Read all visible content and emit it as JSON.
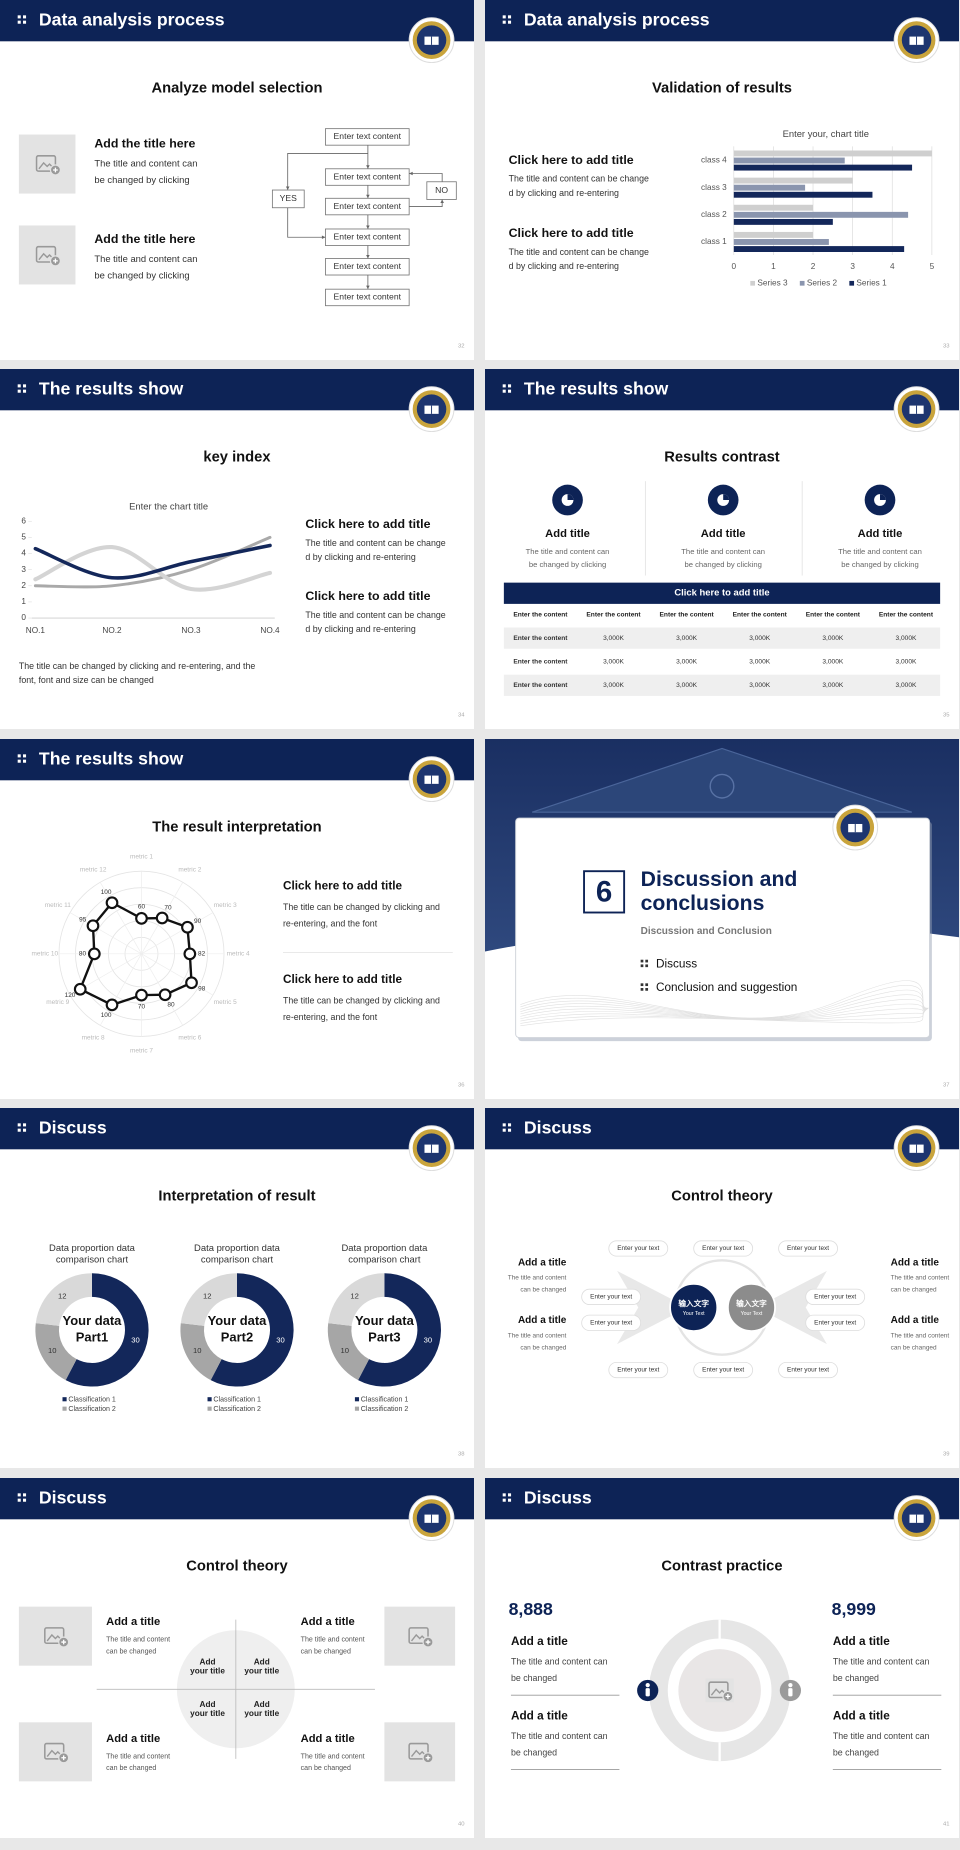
{
  "slides": [
    {
      "header": "Data analysis process",
      "title": "Analyze model selection",
      "page": "32",
      "items": [
        {
          "title": "Add the title here",
          "lines": [
            "The title and content can",
            "be changed by clicking"
          ]
        },
        {
          "title": "Add the title here",
          "lines": [
            "The title and content can",
            "be changed by clicking"
          ]
        }
      ],
      "flow": {
        "steps": [
          "Enter text content",
          "Enter text content",
          "Enter text content",
          "Enter text content",
          "Enter text content",
          "Enter text content"
        ],
        "yes": "YES",
        "no": "NO"
      }
    },
    {
      "header": "Data analysis process",
      "title": "Validation of results",
      "page": "33",
      "items": [
        {
          "title": "Click here to add title",
          "lines": [
            "The title and content can be change",
            "d by clicking and re-entering"
          ]
        },
        {
          "title": "Click here to add title",
          "lines": [
            "The title and content can be change",
            "d by clicking and re-entering"
          ]
        }
      ],
      "chart": {
        "type": "bar",
        "title": "Enter your, chart title",
        "categories": [
          "class 1",
          "class 2",
          "class 3",
          "class 4"
        ],
        "series": [
          {
            "name": "Series 1",
            "color": "#13275a",
            "values": [
              4.3,
              2.5,
              3.5,
              4.5
            ]
          },
          {
            "name": "Series 2",
            "color": "#8a95ae",
            "values": [
              2.4,
              4.4,
              1.8,
              2.8
            ]
          },
          {
            "name": "Series 3",
            "color": "#cfcfcf",
            "values": [
              2,
              2,
              3,
              5
            ]
          }
        ],
        "xlim": [
          0,
          5
        ],
        "xticks": [
          0,
          1,
          2,
          3,
          4,
          5
        ],
        "grid": true
      }
    },
    {
      "header": "The results show",
      "title": "key index",
      "page": "34",
      "chart": {
        "type": "line",
        "title": "Enter the chart title",
        "categories": [
          "NO.1",
          "NO.2",
          "NO.3",
          "NO.4"
        ],
        "series": [
          {
            "name": "Series 1",
            "color": "#13275a",
            "values": [
              4.3,
              2.5,
              3.5,
              4.5
            ]
          },
          {
            "name": "Series 2",
            "color": "#d4d4d4",
            "values": [
              2.4,
              4.4,
              1.8,
              2.8
            ]
          },
          {
            "name": "Series 3",
            "color": "#a9a9a9",
            "values": [
              2,
              2,
              3,
              5
            ]
          }
        ],
        "ylim": [
          0,
          6
        ],
        "yticks": [
          0,
          1,
          2,
          3,
          4,
          5,
          6
        ]
      },
      "items": [
        {
          "title": "Click here to add title",
          "lines": [
            "The title and content can be change",
            "d by clicking and re-entering"
          ]
        },
        {
          "title": "Click here to add title",
          "lines": [
            "The title and content can be change",
            "d by clicking and re-entering"
          ]
        }
      ],
      "note": [
        "The title can be changed by clicking and re-entering, and the",
        "font, font and size can be changed"
      ]
    },
    {
      "header": "The results show",
      "title": "Results contrast",
      "page": "35",
      "items": [
        {
          "title": "Add title",
          "lines": [
            "The title and content can",
            "be changed by clicking"
          ]
        },
        {
          "title": "Add title",
          "lines": [
            "The title and content can",
            "be changed by clicking"
          ]
        },
        {
          "title": "Add title",
          "lines": [
            "The title and content can",
            "be changed by clicking"
          ]
        }
      ],
      "table": {
        "caption": "Click here to add title",
        "columns": [
          "Enter the content",
          "Enter the content",
          "Enter the content",
          "Enter the content",
          "Enter the content",
          "Enter the content"
        ],
        "rows": [
          [
            "Enter the content",
            "3,000K",
            "3,000K",
            "3,000K",
            "3,000K",
            "3,000K"
          ],
          [
            "Enter the content",
            "3,000K",
            "3,000K",
            "3,000K",
            "3,000K",
            "3,000K"
          ],
          [
            "Enter the content",
            "3,000K",
            "3,000K",
            "3,000K",
            "3,000K",
            "3,000K"
          ]
        ]
      }
    },
    {
      "header": "The results show",
      "title": "The result interpretation",
      "page": "36",
      "chart": {
        "type": "radar",
        "categories": [
          "metric 1",
          "metric 2",
          "metric 3",
          "metric 4",
          "metric 5",
          "metric 6",
          "metric 7",
          "metric 8",
          "metric 9",
          "metric 10",
          "metric 11",
          "metric 12"
        ],
        "values": [
          60,
          70,
          90,
          82,
          98,
          80,
          70,
          100,
          120,
          80,
          95,
          100
        ],
        "rlim": [
          0,
          140
        ],
        "color": "#111111"
      },
      "items": [
        {
          "title": "Click here to add  title",
          "lines": [
            "The title can be changed by clicking and",
            "re-entering, and the font"
          ]
        },
        {
          "title": "Click here to add  title",
          "lines": [
            "The title can be changed by clicking and",
            "re-entering, and the font"
          ]
        }
      ]
    },
    {
      "section": "6",
      "title": [
        "Discussion and",
        "conclusions"
      ],
      "subtitle": "Discussion and Conclusion",
      "bullets": [
        "Discuss",
        "Conclusion and suggestion"
      ],
      "page": "37"
    },
    {
      "header": "Discuss",
      "title": "Interpretation of result",
      "page": "38",
      "charts": [
        {
          "type": "donut",
          "title": [
            "Data proportion data",
            "comparison chart"
          ],
          "center": [
            "Your data",
            "Part1"
          ],
          "categories": [
            "Classification 1",
            "Classification 2",
            null
          ],
          "values": [
            30,
            10,
            12
          ],
          "colors": [
            "#13275a",
            "#a6a6a6",
            "#d9d9d9"
          ]
        },
        {
          "type": "donut",
          "title": [
            "Data proportion data",
            "comparison chart"
          ],
          "center": [
            "Your data",
            "Part2"
          ],
          "categories": [
            "Classification 1",
            "Classification 2",
            null
          ],
          "values": [
            30,
            10,
            12
          ],
          "colors": [
            "#13275a",
            "#a6a6a6",
            "#d9d9d9"
          ]
        },
        {
          "type": "donut",
          "title": [
            "Data proportion data",
            "comparison chart"
          ],
          "center": [
            "Your data",
            "Part3"
          ],
          "categories": [
            "Classification 1",
            "Classification 2",
            null
          ],
          "values": [
            30,
            10,
            12
          ],
          "colors": [
            "#13275a",
            "#a6a6a6",
            "#d9d9d9"
          ]
        }
      ]
    },
    {
      "header": "Discuss",
      "title": "Control theory",
      "page": "39",
      "hub": [
        [
          "输入文字",
          "Your Text"
        ],
        [
          "输入文字",
          "Your Text"
        ]
      ],
      "pills": [
        "Enter your text",
        "Enter your text",
        "Enter your text",
        "Enter your text",
        "Enter your text",
        "Enter your text",
        "Enter your text",
        "Enter your text",
        "Enter your text",
        "Enter your text"
      ],
      "items": [
        {
          "title": "Add a title",
          "lines": [
            "The title and content",
            "can be changed"
          ]
        },
        {
          "title": "Add a title",
          "lines": [
            "The title and content",
            "can be changed"
          ]
        },
        {
          "title": "Add a title",
          "lines": [
            "The title and content",
            "can be changed"
          ]
        },
        {
          "title": "Add a title",
          "lines": [
            "The title and content",
            "can be changed"
          ]
        }
      ]
    },
    {
      "header": "Discuss",
      "title": "Control theory",
      "page": "40",
      "quadrants": [
        [
          "Add",
          "your title"
        ],
        [
          "Add",
          "your title"
        ],
        [
          "Add",
          "your title"
        ],
        [
          "Add",
          "your title"
        ]
      ],
      "items": [
        {
          "title": "Add a title",
          "lines": [
            "The title and content",
            "can be changed"
          ]
        },
        {
          "title": "Add a title",
          "lines": [
            "The title and content",
            "can be changed"
          ]
        },
        {
          "title": "Add a title",
          "lines": [
            "The title and content",
            "can be changed"
          ]
        },
        {
          "title": "Add a title",
          "lines": [
            "The title and content",
            "can be changed"
          ]
        }
      ]
    },
    {
      "header": "Discuss",
      "title": "Contrast practice",
      "page": "41",
      "stats": [
        {
          "value": "8,888",
          "items": [
            {
              "title": "Add a title",
              "lines": [
                "The title and content can",
                "be changed"
              ]
            },
            {
              "title": "Add a title",
              "lines": [
                "The title and content can",
                "be changed"
              ]
            }
          ]
        },
        {
          "value": "8,999",
          "items": [
            {
              "title": "Add a title",
              "lines": [
                "The title and content can",
                "be changed"
              ]
            },
            {
              "title": "Add a title",
              "lines": [
                "The title and content can",
                "be changed"
              ]
            }
          ]
        }
      ]
    }
  ]
}
